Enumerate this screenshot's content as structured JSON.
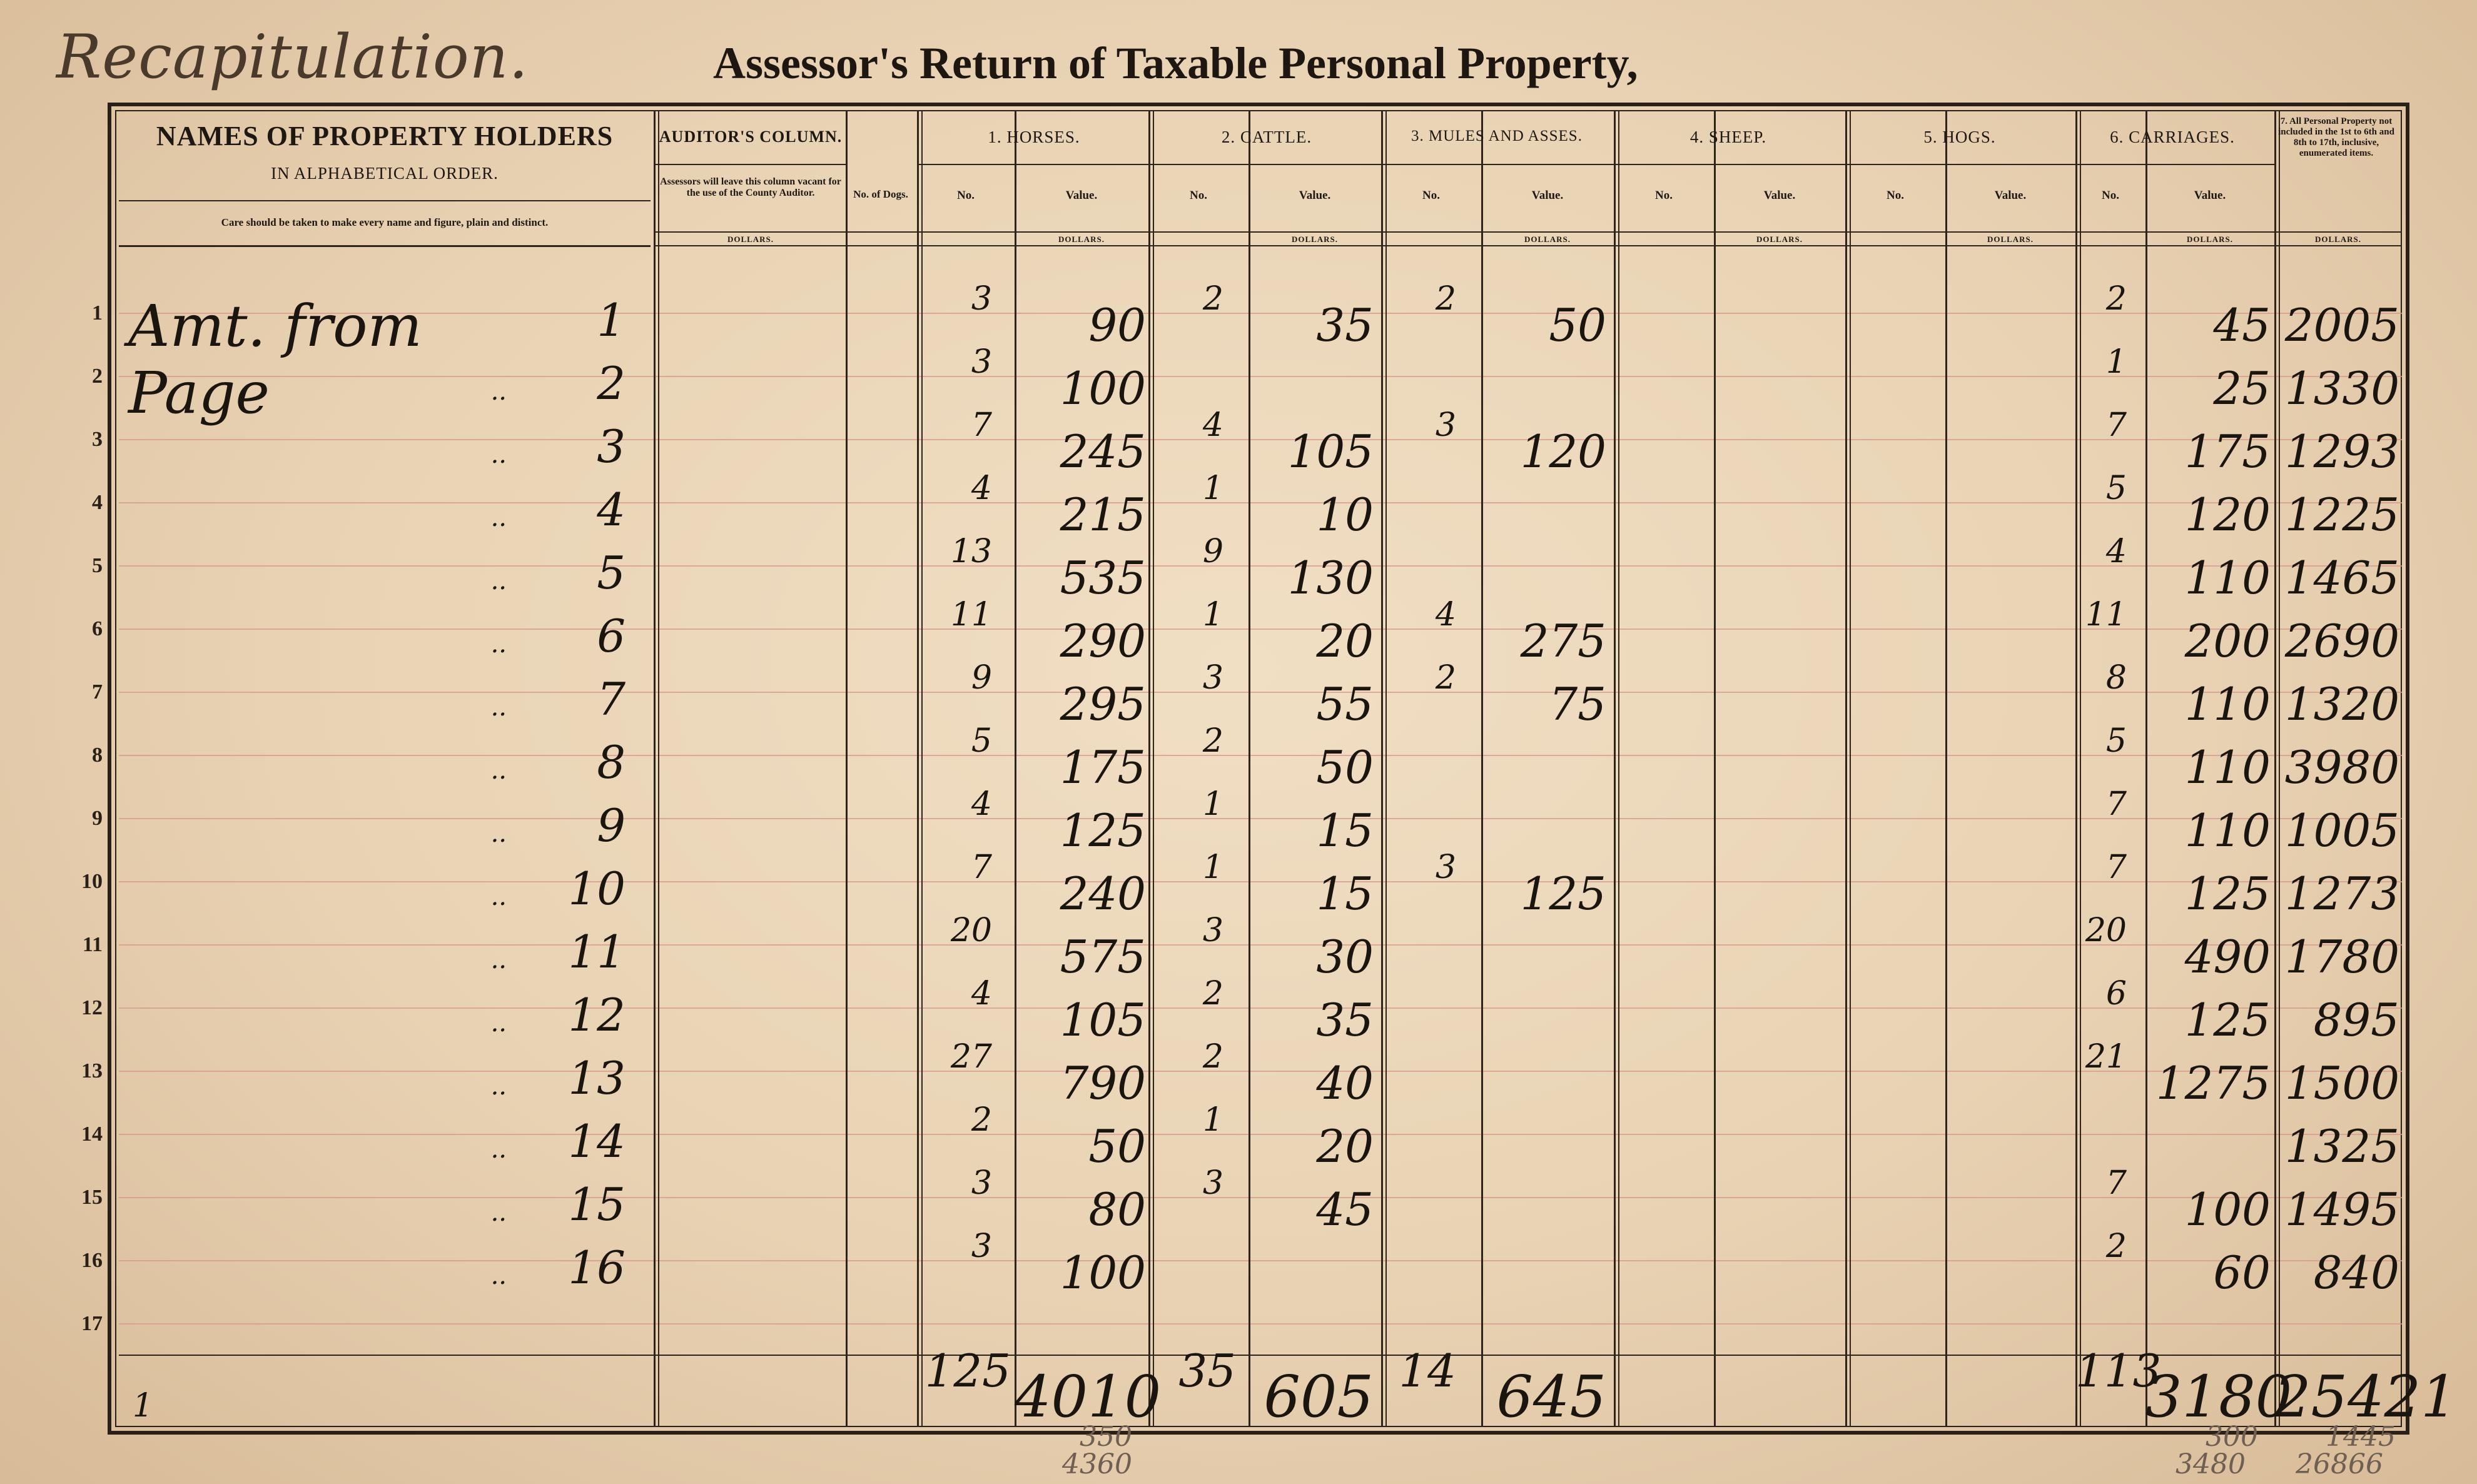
{
  "page": {
    "note": "Recapitulation.",
    "title": "Assessor's Return of Taxable Personal Property,"
  },
  "headers": {
    "names_line1": "NAMES OF PROPERTY HOLDERS",
    "names_line2": "IN ALPHABETICAL ORDER.",
    "names_note": "Care should be taken to make every name and figure, plain and distinct.",
    "auditor": "AUDITOR'S COLUMN.",
    "auditor_note": "Assessors will leave this column vacant for the use of the County Auditor.",
    "auditor_dollars": "DOLLARS.",
    "dogs": "No. of Dogs.",
    "horses": "1. HORSES.",
    "cattle": "2. CATTLE.",
    "mules": "3. MULES AND ASSES.",
    "sheep": "4. SHEEP.",
    "hogs": "5. HOGS.",
    "carriages": "6. CARRIAGES.",
    "other": "7. All Personal Property not included in the 1st to 6th and 8th to 17th, inclusive, enumerated items.",
    "no": "No.",
    "value": "Value.",
    "dollars": "DOLLARS."
  },
  "first_row_label": "Amt. from Page",
  "ditto": "..",
  "rows": [
    {
      "n": "1",
      "page": "1",
      "h_no": "3",
      "h_val": "90",
      "c_no": "2",
      "c_val": "35",
      "m_no": "2",
      "m_val": "50",
      "car_no": "2",
      "car_val": "45",
      "other": "2005"
    },
    {
      "n": "2",
      "page": "2",
      "h_no": "3",
      "h_val": "100",
      "c_no": "",
      "c_val": "",
      "m_no": "",
      "m_val": "",
      "car_no": "1",
      "car_val": "25",
      "other": "1330"
    },
    {
      "n": "3",
      "page": "3",
      "h_no": "7",
      "h_val": "245",
      "c_no": "4",
      "c_val": "105",
      "m_no": "3",
      "m_val": "120",
      "car_no": "7",
      "car_val": "175",
      "other": "1293"
    },
    {
      "n": "4",
      "page": "4",
      "h_no": "4",
      "h_val": "215",
      "c_no": "1",
      "c_val": "10",
      "m_no": "",
      "m_val": "",
      "car_no": "5",
      "car_val": "120",
      "other": "1225"
    },
    {
      "n": "5",
      "page": "5",
      "h_no": "13",
      "h_val": "535",
      "c_no": "9",
      "c_val": "130",
      "m_no": "",
      "m_val": "",
      "car_no": "4",
      "car_val": "110",
      "other": "1465"
    },
    {
      "n": "6",
      "page": "6",
      "h_no": "11",
      "h_val": "290",
      "c_no": "1",
      "c_val": "20",
      "m_no": "4",
      "m_val": "275",
      "car_no": "11",
      "car_val": "200",
      "other": "2690"
    },
    {
      "n": "7",
      "page": "7",
      "h_no": "9",
      "h_val": "295",
      "c_no": "3",
      "c_val": "55",
      "m_no": "2",
      "m_val": "75",
      "car_no": "8",
      "car_val": "110",
      "other": "1320"
    },
    {
      "n": "8",
      "page": "8",
      "h_no": "5",
      "h_val": "175",
      "c_no": "2",
      "c_val": "50",
      "m_no": "",
      "m_val": "",
      "car_no": "5",
      "car_val": "110",
      "other": "3980"
    },
    {
      "n": "9",
      "page": "9",
      "h_no": "4",
      "h_val": "125",
      "c_no": "1",
      "c_val": "15",
      "m_no": "",
      "m_val": "",
      "car_no": "7",
      "car_val": "110",
      "other": "1005"
    },
    {
      "n": "10",
      "page": "10",
      "h_no": "7",
      "h_val": "240",
      "c_no": "1",
      "c_val": "15",
      "m_no": "3",
      "m_val": "125",
      "car_no": "7",
      "car_val": "125",
      "other": "1273"
    },
    {
      "n": "11",
      "page": "11",
      "h_no": "20",
      "h_val": "575",
      "c_no": "3",
      "c_val": "30",
      "m_no": "",
      "m_val": "",
      "car_no": "20",
      "car_val": "490",
      "other": "1780"
    },
    {
      "n": "12",
      "page": "12",
      "h_no": "4",
      "h_val": "105",
      "c_no": "2",
      "c_val": "35",
      "m_no": "",
      "m_val": "",
      "car_no": "6",
      "car_val": "125",
      "other": "895"
    },
    {
      "n": "13",
      "page": "13",
      "h_no": "27",
      "h_val": "790",
      "c_no": "2",
      "c_val": "40",
      "m_no": "",
      "m_val": "",
      "car_no": "21",
      "car_val": "1275",
      "other": "1500"
    },
    {
      "n": "14",
      "page": "14",
      "h_no": "2",
      "h_val": "50",
      "c_no": "1",
      "c_val": "20",
      "m_no": "",
      "m_val": "",
      "car_no": "",
      "car_val": "",
      "other": "1325"
    },
    {
      "n": "15",
      "page": "15",
      "h_no": "3",
      "h_val": "80",
      "c_no": "3",
      "c_val": "45",
      "m_no": "",
      "m_val": "",
      "car_no": "7",
      "car_val": "100",
      "other": "1495"
    },
    {
      "n": "16",
      "page": "16",
      "h_no": "3",
      "h_val": "100",
      "c_no": "",
      "c_val": "",
      "m_no": "",
      "m_val": "",
      "car_no": "2",
      "car_val": "60",
      "other": "840"
    },
    {
      "n": "17",
      "page": "",
      "h_no": "",
      "h_val": "",
      "c_no": "",
      "c_val": "",
      "m_no": "",
      "m_val": "",
      "car_no": "",
      "car_val": "",
      "other": ""
    }
  ],
  "totals": {
    "mark": "1",
    "h_no": "125",
    "h_val": "4010",
    "c_no": "35",
    "c_val": "605",
    "m_no": "14",
    "m_val": "645",
    "car_no": "113",
    "car_val": "3180",
    "other": "25421"
  },
  "margin_notes": {
    "h_extra1": "350",
    "h_extra2": "4360",
    "car_extra1": "300",
    "car_extra2": "3480",
    "other_extra1": "1445",
    "other_extra2": "26866"
  }
}
